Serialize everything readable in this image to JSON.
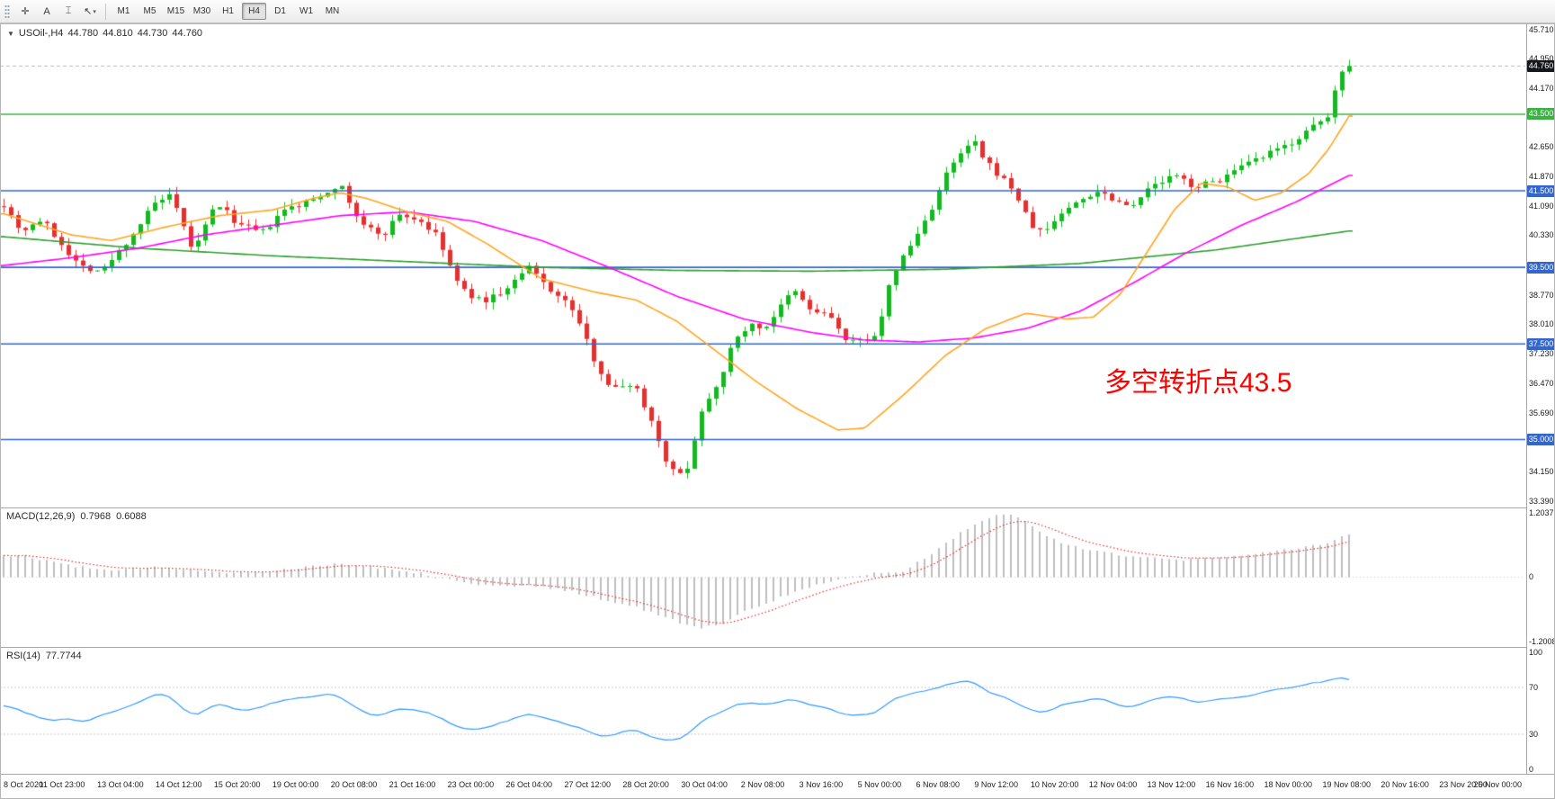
{
  "toolbar": {
    "tools": [
      {
        "name": "crosshair-tool",
        "glyph": "✛"
      },
      {
        "name": "text-label-tool",
        "glyph": "A"
      },
      {
        "name": "vertical-line-tool",
        "glyph": "⌶"
      },
      {
        "name": "cursor-tool",
        "glyph": "↖",
        "dropdown": true
      }
    ],
    "timeframes": [
      "M1",
      "M5",
      "M15",
      "M30",
      "H1",
      "H4",
      "D1",
      "W1",
      "MN"
    ],
    "active_timeframe": "H4"
  },
  "chart_data": {
    "type": "candlestick",
    "symbol": "USOil-",
    "timeframe": "H4",
    "header": {
      "symbol_tf": "USOil-,H4",
      "open": "44.780",
      "high": "44.810",
      "low": "44.730",
      "close": "44.760"
    },
    "price_axis": {
      "min": 33.39,
      "max": 45.71,
      "labels": [
        "45.710",
        "44.950",
        "44.170",
        "42.650",
        "41.870",
        "41.090",
        "40.330",
        "38.770",
        "38.010",
        "37.230",
        "36.470",
        "35.690",
        "34.150",
        "33.390"
      ]
    },
    "hlines": [
      {
        "value": 43.5,
        "label": "43.500",
        "color": "#3cb043"
      },
      {
        "value": 41.5,
        "label": "41.500",
        "color": "#3366cc"
      },
      {
        "value": 39.5,
        "label": "39.500",
        "color": "#3366cc"
      },
      {
        "value": 37.5,
        "label": "37.500",
        "color": "#3366cc"
      },
      {
        "value": 35.0,
        "label": "35.000",
        "color": "#3366cc"
      }
    ],
    "current_price": {
      "label": "44.760",
      "value": 44.76,
      "badge_color": "#14171c"
    },
    "annotation": {
      "text": "多空转折点43.5",
      "color": "#ff0000"
    },
    "colors": {
      "up": "#18b524",
      "down": "#e03232",
      "ma_fast": "#ffa520",
      "ma_mid": "#ff00ff",
      "ma_slow": "#2e9e2e",
      "macd_hist": "#ababab",
      "macd_signal": "#e03030",
      "rsi": "#3399ff"
    },
    "price_path": [
      [
        0,
        41.15
      ],
      [
        0.013,
        40.45
      ],
      [
        0.028,
        40.75
      ],
      [
        0.056,
        39.55
      ],
      [
        0.073,
        39.4
      ],
      [
        0.09,
        40.1
      ],
      [
        0.113,
        41.2
      ],
      [
        0.124,
        41.35
      ],
      [
        0.141,
        39.9
      ],
      [
        0.158,
        41.2
      ],
      [
        0.175,
        40.6
      ],
      [
        0.192,
        40.4
      ],
      [
        0.209,
        41.0
      ],
      [
        0.226,
        41.2
      ],
      [
        0.243,
        41.55
      ],
      [
        0.249,
        41.7
      ],
      [
        0.266,
        40.6
      ],
      [
        0.282,
        40.35
      ],
      [
        0.294,
        40.9
      ],
      [
        0.31,
        40.7
      ],
      [
        0.322,
        40.3
      ],
      [
        0.339,
        38.95
      ],
      [
        0.355,
        38.6
      ],
      [
        0.373,
        38.9
      ],
      [
        0.39,
        39.5
      ],
      [
        0.407,
        38.9
      ],
      [
        0.423,
        38.4
      ],
      [
        0.44,
        37.0
      ],
      [
        0.452,
        36.3
      ],
      [
        0.468,
        36.5
      ],
      [
        0.48,
        35.6
      ],
      [
        0.492,
        34.5
      ],
      [
        0.5,
        34.0
      ],
      [
        0.508,
        34.3
      ],
      [
        0.52,
        35.9
      ],
      [
        0.531,
        36.5
      ],
      [
        0.542,
        37.5
      ],
      [
        0.553,
        38.0
      ],
      [
        0.565,
        37.9
      ],
      [
        0.576,
        38.4
      ],
      [
        0.587,
        38.9
      ],
      [
        0.599,
        38.4
      ],
      [
        0.615,
        38.2
      ],
      [
        0.627,
        37.5
      ],
      [
        0.638,
        37.6
      ],
      [
        0.65,
        37.8
      ],
      [
        0.66,
        39.3
      ],
      [
        0.678,
        40.3
      ],
      [
        0.689,
        41.0
      ],
      [
        0.7,
        41.9
      ],
      [
        0.712,
        42.5
      ],
      [
        0.721,
        42.8
      ],
      [
        0.728,
        42.3
      ],
      [
        0.74,
        41.9
      ],
      [
        0.751,
        41.5
      ],
      [
        0.763,
        40.6
      ],
      [
        0.773,
        40.4
      ],
      [
        0.785,
        40.9
      ],
      [
        0.802,
        41.3
      ],
      [
        0.813,
        41.5
      ],
      [
        0.825,
        41.3
      ],
      [
        0.836,
        41.1
      ],
      [
        0.853,
        41.6
      ],
      [
        0.87,
        41.9
      ],
      [
        0.886,
        41.6
      ],
      [
        0.904,
        41.8
      ],
      [
        0.92,
        42.1
      ],
      [
        0.937,
        42.4
      ],
      [
        0.954,
        42.7
      ],
      [
        0.971,
        43.1
      ],
      [
        0.985,
        43.45
      ],
      [
        0.991,
        44.35
      ],
      [
        0.996,
        44.8
      ],
      [
        1,
        44.76
      ]
    ],
    "ma_paths": {
      "fast": [
        [
          0,
          40.9
        ],
        [
          0.05,
          40.35
        ],
        [
          0.08,
          40.2
        ],
        [
          0.12,
          40.55
        ],
        [
          0.16,
          40.85
        ],
        [
          0.2,
          41.0
        ],
        [
          0.23,
          41.3
        ],
        [
          0.25,
          41.45
        ],
        [
          0.27,
          41.3
        ],
        [
          0.3,
          40.95
        ],
        [
          0.33,
          40.7
        ],
        [
          0.36,
          40.1
        ],
        [
          0.4,
          39.2
        ],
        [
          0.44,
          38.85
        ],
        [
          0.47,
          38.65
        ],
        [
          0.5,
          38.1
        ],
        [
          0.53,
          37.3
        ],
        [
          0.56,
          36.5
        ],
        [
          0.59,
          35.8
        ],
        [
          0.62,
          35.25
        ],
        [
          0.64,
          35.3
        ],
        [
          0.67,
          36.2
        ],
        [
          0.7,
          37.2
        ],
        [
          0.73,
          37.9
        ],
        [
          0.76,
          38.3
        ],
        [
          0.79,
          38.15
        ],
        [
          0.81,
          38.2
        ],
        [
          0.83,
          38.8
        ],
        [
          0.85,
          39.9
        ],
        [
          0.87,
          41.0
        ],
        [
          0.89,
          41.7
        ],
        [
          0.91,
          41.6
        ],
        [
          0.93,
          41.25
        ],
        [
          0.95,
          41.45
        ],
        [
          0.97,
          41.95
        ],
        [
          0.985,
          42.6
        ],
        [
          1,
          43.45
        ]
      ],
      "mid": [
        [
          0,
          39.55
        ],
        [
          0.05,
          39.75
        ],
        [
          0.1,
          40.0
        ],
        [
          0.15,
          40.35
        ],
        [
          0.2,
          40.6
        ],
        [
          0.25,
          40.85
        ],
        [
          0.3,
          40.95
        ],
        [
          0.35,
          40.7
        ],
        [
          0.4,
          40.2
        ],
        [
          0.45,
          39.5
        ],
        [
          0.5,
          38.75
        ],
        [
          0.55,
          38.15
        ],
        [
          0.6,
          37.8
        ],
        [
          0.64,
          37.6
        ],
        [
          0.68,
          37.55
        ],
        [
          0.72,
          37.65
        ],
        [
          0.76,
          37.9
        ],
        [
          0.8,
          38.35
        ],
        [
          0.84,
          39.1
        ],
        [
          0.88,
          39.9
        ],
        [
          0.92,
          40.6
        ],
        [
          0.96,
          41.2
        ],
        [
          1,
          41.9
        ]
      ],
      "slow": [
        [
          0,
          40.3
        ],
        [
          0.1,
          40.0
        ],
        [
          0.2,
          39.8
        ],
        [
          0.3,
          39.65
        ],
        [
          0.4,
          39.5
        ],
        [
          0.5,
          39.42
        ],
        [
          0.6,
          39.4
        ],
        [
          0.7,
          39.45
        ],
        [
          0.8,
          39.6
        ],
        [
          0.9,
          39.95
        ],
        [
          1,
          40.45
        ]
      ]
    },
    "macd": {
      "label": "MACD(12,26,9)",
      "main_value": "0.7968",
      "signal_value": "0.6088",
      "axis_labels": [
        "1.2037",
        "0",
        "-1.2008"
      ],
      "max": 1.2037,
      "min": -1.2008,
      "path": [
        [
          0,
          0.42
        ],
        [
          0.02,
          0.38
        ],
        [
          0.05,
          0.22
        ],
        [
          0.08,
          0.12
        ],
        [
          0.11,
          0.18
        ],
        [
          0.14,
          0.15
        ],
        [
          0.17,
          0.08
        ],
        [
          0.2,
          0.12
        ],
        [
          0.23,
          0.22
        ],
        [
          0.25,
          0.26
        ],
        [
          0.28,
          0.18
        ],
        [
          0.31,
          0.08
        ],
        [
          0.34,
          -0.08
        ],
        [
          0.37,
          -0.18
        ],
        [
          0.39,
          -0.15
        ],
        [
          0.42,
          -0.25
        ],
        [
          0.45,
          -0.45
        ],
        [
          0.47,
          -0.55
        ],
        [
          0.49,
          -0.75
        ],
        [
          0.51,
          -0.9
        ],
        [
          0.52,
          -0.95
        ],
        [
          0.535,
          -0.85
        ],
        [
          0.55,
          -0.65
        ],
        [
          0.57,
          -0.45
        ],
        [
          0.59,
          -0.25
        ],
        [
          0.61,
          -0.1
        ],
        [
          0.63,
          0.0
        ],
        [
          0.65,
          0.1
        ],
        [
          0.665,
          0.08
        ],
        [
          0.675,
          0.2
        ],
        [
          0.69,
          0.45
        ],
        [
          0.705,
          0.7
        ],
        [
          0.715,
          0.9
        ],
        [
          0.725,
          1.05
        ],
        [
          0.735,
          1.15
        ],
        [
          0.745,
          1.2
        ],
        [
          0.755,
          1.1
        ],
        [
          0.765,
          0.95
        ],
        [
          0.775,
          0.8
        ],
        [
          0.785,
          0.65
        ],
        [
          0.8,
          0.55
        ],
        [
          0.815,
          0.5
        ],
        [
          0.83,
          0.42
        ],
        [
          0.845,
          0.38
        ],
        [
          0.86,
          0.35
        ],
        [
          0.875,
          0.32
        ],
        [
          0.89,
          0.35
        ],
        [
          0.905,
          0.38
        ],
        [
          0.92,
          0.42
        ],
        [
          0.935,
          0.45
        ],
        [
          0.95,
          0.5
        ],
        [
          0.965,
          0.55
        ],
        [
          0.98,
          0.62
        ],
        [
          0.99,
          0.72
        ],
        [
          1,
          0.8
        ]
      ]
    },
    "rsi": {
      "label": "RSI(14)",
      "value": "77.7744",
      "axis_labels": [
        "100",
        "70",
        "30",
        "0"
      ],
      "levels": [
        70,
        30
      ],
      "path": [
        [
          0,
          55
        ],
        [
          0.02,
          47
        ],
        [
          0.035,
          42
        ],
        [
          0.05,
          44
        ],
        [
          0.06,
          40
        ],
        [
          0.075,
          48
        ],
        [
          0.09,
          52
        ],
        [
          0.105,
          60
        ],
        [
          0.118,
          66
        ],
        [
          0.13,
          55
        ],
        [
          0.141,
          44
        ],
        [
          0.15,
          50
        ],
        [
          0.158,
          58
        ],
        [
          0.17,
          52
        ],
        [
          0.185,
          50
        ],
        [
          0.2,
          57
        ],
        [
          0.215,
          60
        ],
        [
          0.23,
          62
        ],
        [
          0.245,
          65
        ],
        [
          0.255,
          60
        ],
        [
          0.266,
          48
        ],
        [
          0.28,
          45
        ],
        [
          0.294,
          52
        ],
        [
          0.31,
          50
        ],
        [
          0.325,
          44
        ],
        [
          0.34,
          35
        ],
        [
          0.355,
          34
        ],
        [
          0.37,
          40
        ],
        [
          0.39,
          48
        ],
        [
          0.407,
          42
        ],
        [
          0.42,
          38
        ],
        [
          0.44,
          30
        ],
        [
          0.452,
          28
        ],
        [
          0.468,
          35
        ],
        [
          0.48,
          29
        ],
        [
          0.492,
          25
        ],
        [
          0.5,
          24
        ],
        [
          0.508,
          28
        ],
        [
          0.52,
          42
        ],
        [
          0.531,
          48
        ],
        [
          0.542,
          54
        ],
        [
          0.553,
          57
        ],
        [
          0.565,
          55
        ],
        [
          0.576,
          58
        ],
        [
          0.587,
          61
        ],
        [
          0.6,
          55
        ],
        [
          0.615,
          52
        ],
        [
          0.627,
          45
        ],
        [
          0.638,
          46
        ],
        [
          0.65,
          49
        ],
        [
          0.66,
          60
        ],
        [
          0.678,
          65
        ],
        [
          0.69,
          68
        ],
        [
          0.7,
          72
        ],
        [
          0.712,
          74
        ],
        [
          0.721,
          75
        ],
        [
          0.728,
          68
        ],
        [
          0.74,
          63
        ],
        [
          0.751,
          58
        ],
        [
          0.763,
          50
        ],
        [
          0.773,
          48
        ],
        [
          0.785,
          55
        ],
        [
          0.802,
          58
        ],
        [
          0.813,
          60
        ],
        [
          0.825,
          56
        ],
        [
          0.836,
          53
        ],
        [
          0.853,
          60
        ],
        [
          0.87,
          63
        ],
        [
          0.886,
          57
        ],
        [
          0.904,
          60
        ],
        [
          0.92,
          63
        ],
        [
          0.937,
          66
        ],
        [
          0.954,
          69
        ],
        [
          0.971,
          73
        ],
        [
          0.985,
          75
        ],
        [
          0.991,
          80
        ],
        [
          1,
          77.8
        ]
      ]
    },
    "time_labels": [
      "8 Oct 2020",
      "11 Oct 23:00",
      "13 Oct 04:00",
      "14 Oct 12:00",
      "15 Oct 20:00",
      "19 Oct 00:00",
      "20 Oct 08:00",
      "21 Oct 16:00",
      "23 Oct 00:00",
      "26 Oct 04:00",
      "27 Oct 12:00",
      "28 Oct 20:00",
      "30 Oct 04:00",
      "2 Nov 08:00",
      "3 Nov 16:00",
      "5 Nov 00:00",
      "6 Nov 08:00",
      "9 Nov 12:00",
      "10 Nov 20:00",
      "12 Nov 04:00",
      "13 Nov 12:00",
      "16 Nov 16:00",
      "18 Nov 00:00",
      "19 Nov 08:00",
      "20 Nov 16:00",
      "23 Nov 20:00",
      "25 Nov 00:00"
    ]
  }
}
